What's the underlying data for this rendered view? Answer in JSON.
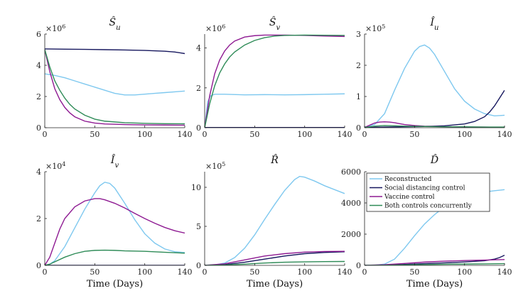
{
  "legend": {
    "placement": "top-left of D panel",
    "entries": [
      {
        "label": "Reconstructed",
        "color": "#7ec8ef"
      },
      {
        "label": "Social distancing control",
        "color": "#16175e"
      },
      {
        "label": "Vaccine control",
        "color": "#8e1a92"
      },
      {
        "label": "Both controls concurrently",
        "color": "#2e8b57"
      }
    ]
  },
  "chart_data": [
    {
      "type": "line",
      "title": "Ŝ_u",
      "xlabel": "",
      "ylabel": "",
      "xlim": [
        0,
        140
      ],
      "ylim": [
        0,
        6
      ],
      "y_multiplier": "×10^6",
      "x_ticks": [
        0,
        50,
        100,
        140
      ],
      "y_ticks": [
        0,
        2,
        4,
        6
      ],
      "series": [
        {
          "color": "#7ec8ef",
          "x": [
            0,
            10,
            20,
            30,
            40,
            50,
            60,
            70,
            80,
            90,
            100,
            110,
            120,
            130,
            140
          ],
          "y": [
            3.45,
            3.35,
            3.2,
            3.0,
            2.8,
            2.6,
            2.4,
            2.2,
            2.1,
            2.1,
            2.15,
            2.2,
            2.25,
            2.3,
            2.35
          ]
        },
        {
          "color": "#16175e",
          "x": [
            0,
            20,
            40,
            60,
            80,
            100,
            120,
            130,
            140
          ],
          "y": [
            5.05,
            5.03,
            5.02,
            5.0,
            4.98,
            4.95,
            4.9,
            4.85,
            4.75
          ]
        },
        {
          "color": "#8e1a92",
          "x": [
            0,
            5,
            10,
            15,
            20,
            25,
            30,
            40,
            50,
            60,
            80,
            100,
            120,
            140
          ],
          "y": [
            5.0,
            3.6,
            2.5,
            1.8,
            1.3,
            0.95,
            0.7,
            0.42,
            0.3,
            0.24,
            0.2,
            0.18,
            0.17,
            0.16
          ]
        },
        {
          "color": "#2e8b57",
          "x": [
            0,
            5,
            10,
            15,
            20,
            25,
            30,
            40,
            50,
            60,
            80,
            100,
            120,
            140
          ],
          "y": [
            5.0,
            3.9,
            3.0,
            2.4,
            1.9,
            1.5,
            1.2,
            0.8,
            0.55,
            0.42,
            0.32,
            0.28,
            0.26,
            0.25
          ]
        }
      ]
    },
    {
      "type": "line",
      "title": "Ŝ_v",
      "xlabel": "",
      "ylabel": "",
      "xlim": [
        0,
        140
      ],
      "ylim": [
        0,
        4.7
      ],
      "y_multiplier": "×10^6",
      "x_ticks": [
        0,
        50,
        100,
        140
      ],
      "y_ticks": [
        0,
        2,
        4
      ],
      "series": [
        {
          "color": "#7ec8ef",
          "x": [
            0,
            3,
            6,
            10,
            20,
            40,
            60,
            80,
            100,
            120,
            140
          ],
          "y": [
            0,
            1.3,
            1.6,
            1.68,
            1.68,
            1.65,
            1.66,
            1.65,
            1.66,
            1.68,
            1.7
          ]
        },
        {
          "color": "#16175e",
          "x": [
            0,
            140
          ],
          "y": [
            0.01,
            0.01
          ]
        },
        {
          "color": "#8e1a92",
          "x": [
            0,
            5,
            10,
            15,
            20,
            25,
            30,
            40,
            50,
            60,
            80,
            100,
            120,
            140
          ],
          "y": [
            0,
            1.6,
            2.7,
            3.4,
            3.85,
            4.15,
            4.35,
            4.55,
            4.62,
            4.65,
            4.65,
            4.63,
            4.6,
            4.58
          ]
        },
        {
          "color": "#2e8b57",
          "x": [
            0,
            5,
            10,
            15,
            20,
            25,
            30,
            40,
            50,
            60,
            70,
            80,
            100,
            120,
            140
          ],
          "y": [
            0,
            1.2,
            2.1,
            2.75,
            3.2,
            3.55,
            3.8,
            4.15,
            4.38,
            4.52,
            4.6,
            4.63,
            4.65,
            4.64,
            4.63
          ]
        }
      ]
    },
    {
      "type": "line",
      "title": "Î_u",
      "xlabel": "",
      "ylabel": "",
      "xlim": [
        0,
        140
      ],
      "ylim": [
        0,
        3
      ],
      "y_multiplier": "×10^5",
      "x_ticks": [
        0,
        50,
        100,
        140
      ],
      "y_ticks": [
        0,
        1,
        2,
        3
      ],
      "series": [
        {
          "color": "#7ec8ef",
          "x": [
            0,
            10,
            20,
            30,
            40,
            50,
            55,
            60,
            65,
            70,
            80,
            90,
            100,
            110,
            120,
            130,
            140
          ],
          "y": [
            0.02,
            0.1,
            0.45,
            1.2,
            1.9,
            2.45,
            2.6,
            2.65,
            2.55,
            2.35,
            1.8,
            1.25,
            0.85,
            0.6,
            0.45,
            0.38,
            0.4
          ]
        },
        {
          "color": "#16175e",
          "x": [
            0,
            20,
            40,
            60,
            80,
            100,
            110,
            120,
            125,
            130,
            135,
            140
          ],
          "y": [
            0.01,
            0.02,
            0.03,
            0.04,
            0.06,
            0.12,
            0.2,
            0.35,
            0.5,
            0.7,
            0.95,
            1.2
          ]
        },
        {
          "color": "#8e1a92",
          "x": [
            0,
            5,
            10,
            15,
            20,
            25,
            30,
            35,
            40,
            50,
            60,
            80,
            100,
            120,
            140
          ],
          "y": [
            0.01,
            0.08,
            0.15,
            0.18,
            0.19,
            0.18,
            0.16,
            0.13,
            0.1,
            0.07,
            0.05,
            0.03,
            0.02,
            0.02,
            0.01
          ]
        },
        {
          "color": "#2e8b57",
          "x": [
            0,
            10,
            20,
            30,
            40,
            60,
            80,
            100,
            120,
            140
          ],
          "y": [
            0.01,
            0.05,
            0.07,
            0.06,
            0.05,
            0.04,
            0.03,
            0.03,
            0.02,
            0.02
          ]
        }
      ]
    },
    {
      "type": "line",
      "title": "Î_v",
      "xlabel": "Time (Days)",
      "ylabel": "",
      "xlim": [
        0,
        140
      ],
      "ylim": [
        0,
        4
      ],
      "y_multiplier": "×10^4",
      "x_ticks": [
        0,
        50,
        100,
        140
      ],
      "y_ticks": [
        0,
        2,
        4
      ],
      "series": [
        {
          "color": "#7ec8ef",
          "x": [
            0,
            5,
            10,
            20,
            30,
            40,
            50,
            55,
            60,
            65,
            70,
            80,
            90,
            100,
            110,
            120,
            130,
            140
          ],
          "y": [
            0,
            0.05,
            0.2,
            0.8,
            1.6,
            2.4,
            3.1,
            3.4,
            3.55,
            3.5,
            3.3,
            2.65,
            1.95,
            1.35,
            0.95,
            0.7,
            0.58,
            0.55
          ]
        },
        {
          "color": "#16175e",
          "x": [
            0,
            140
          ],
          "y": [
            0,
            0
          ]
        },
        {
          "color": "#8e1a92",
          "x": [
            0,
            5,
            10,
            15,
            20,
            30,
            40,
            50,
            55,
            60,
            70,
            80,
            90,
            100,
            110,
            120,
            130,
            140
          ],
          "y": [
            0,
            0.35,
            0.95,
            1.55,
            2.0,
            2.5,
            2.75,
            2.85,
            2.85,
            2.8,
            2.65,
            2.45,
            2.22,
            2.0,
            1.8,
            1.62,
            1.48,
            1.38
          ]
        },
        {
          "color": "#2e8b57",
          "x": [
            0,
            5,
            10,
            20,
            30,
            40,
            50,
            60,
            70,
            80,
            100,
            120,
            140
          ],
          "y": [
            0,
            0.05,
            0.15,
            0.35,
            0.5,
            0.6,
            0.64,
            0.65,
            0.64,
            0.62,
            0.6,
            0.56,
            0.52
          ]
        }
      ]
    },
    {
      "type": "line",
      "title": "R̂",
      "xlabel": "Time (Days)",
      "ylabel": "",
      "xlim": [
        0,
        140
      ],
      "ylim": [
        0,
        12
      ],
      "y_multiplier": "×10^5",
      "x_ticks": [
        0,
        50,
        100,
        140
      ],
      "y_ticks": [
        0,
        5,
        10
      ],
      "series": [
        {
          "color": "#7ec8ef",
          "x": [
            0,
            10,
            20,
            30,
            40,
            50,
            60,
            70,
            80,
            90,
            95,
            100,
            110,
            120,
            130,
            140
          ],
          "y": [
            0,
            0.05,
            0.3,
            1.0,
            2.2,
            3.9,
            5.9,
            7.8,
            9.6,
            11.0,
            11.4,
            11.3,
            10.8,
            10.2,
            9.7,
            9.2
          ]
        },
        {
          "color": "#16175e",
          "x": [
            0,
            20,
            40,
            60,
            80,
            100,
            120,
            140
          ],
          "y": [
            0,
            0.1,
            0.4,
            0.8,
            1.2,
            1.5,
            1.65,
            1.75
          ]
        },
        {
          "color": "#8e1a92",
          "x": [
            0,
            20,
            40,
            60,
            80,
            100,
            120,
            140
          ],
          "y": [
            0,
            0.2,
            0.7,
            1.2,
            1.5,
            1.7,
            1.78,
            1.8
          ]
        },
        {
          "color": "#2e8b57",
          "x": [
            0,
            20,
            40,
            60,
            80,
            100,
            120,
            140
          ],
          "y": [
            0,
            0.05,
            0.15,
            0.3,
            0.4,
            0.45,
            0.48,
            0.5
          ]
        }
      ]
    },
    {
      "type": "line",
      "title": "D̂",
      "xlabel": "Time (Days)",
      "ylabel": "",
      "xlim": [
        0,
        140
      ],
      "ylim": [
        0,
        6000
      ],
      "y_multiplier": "",
      "x_ticks": [
        0,
        50,
        100,
        140
      ],
      "y_ticks": [
        0,
        2000,
        4000,
        6000
      ],
      "series": [
        {
          "color": "#7ec8ef",
          "x": [
            0,
            10,
            20,
            30,
            40,
            50,
            60,
            70,
            80,
            90,
            100,
            110,
            120,
            130,
            140
          ],
          "y": [
            0,
            10,
            80,
            400,
            1100,
            1900,
            2650,
            3250,
            3750,
            4100,
            4380,
            4580,
            4700,
            4780,
            4850
          ]
        },
        {
          "color": "#16175e",
          "x": [
            0,
            20,
            40,
            60,
            80,
            100,
            110,
            120,
            130,
            135,
            140
          ],
          "y": [
            0,
            20,
            60,
            110,
            160,
            220,
            260,
            300,
            400,
            500,
            650
          ]
        },
        {
          "color": "#8e1a92",
          "x": [
            0,
            20,
            40,
            60,
            80,
            100,
            120,
            140
          ],
          "y": [
            0,
            40,
            120,
            210,
            270,
            310,
            340,
            370
          ]
        },
        {
          "color": "#2e8b57",
          "x": [
            0,
            20,
            40,
            60,
            80,
            100,
            120,
            140
          ],
          "y": [
            0,
            10,
            30,
            50,
            70,
            85,
            95,
            110
          ]
        }
      ]
    }
  ]
}
